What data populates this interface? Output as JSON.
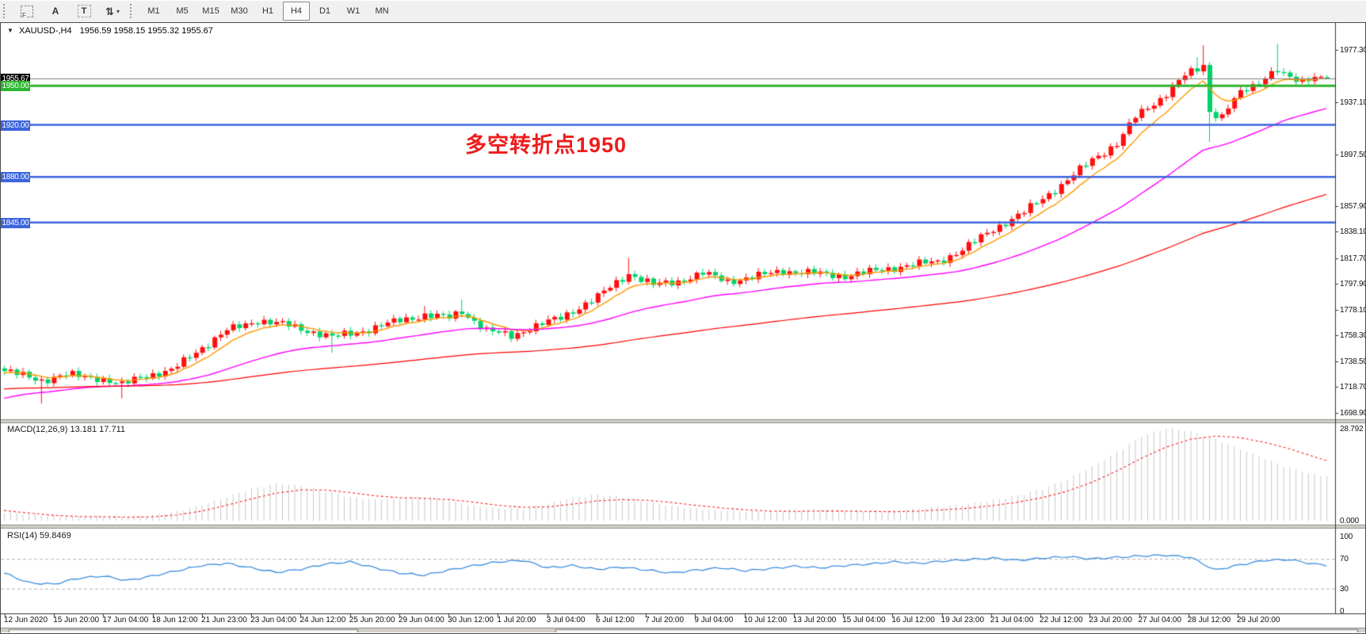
{
  "toolbar": {
    "tools": {
      "f": "F",
      "font": "A",
      "text": "T",
      "arrows": "⇅",
      "caret": "▾"
    },
    "timeframes": [
      "M1",
      "M5",
      "M15",
      "M30",
      "H1",
      "H4",
      "D1",
      "W1",
      "MN"
    ],
    "selected_timeframe": "H4"
  },
  "chart": {
    "title_symbol": "XAUUSD-,H4",
    "title_ohlc": "1956.59 1958.15 1955.32 1955.67",
    "annotation": {
      "text": "多空转折点1950",
      "color": "#ee1c1c"
    },
    "current_price": "1955.67",
    "sr_levels": [
      {
        "price": "1950.00",
        "value": 1950,
        "color": "#2eb52e"
      },
      {
        "price": "1920.00",
        "value": 1920,
        "color": "#3c64dc"
      },
      {
        "price": "1880.00",
        "value": 1880,
        "color": "#3c64dc"
      },
      {
        "price": "1845.00",
        "value": 1845,
        "color": "#3c64dc"
      }
    ],
    "y_ticks": [
      "1977.30",
      "1937.10",
      "1897.50",
      "1857.90",
      "1838.10",
      "1817.70",
      "1797.90",
      "1778.10",
      "1758.30",
      "1738.50",
      "1718.70",
      "1698.90"
    ],
    "x_ticks": [
      "12 Jun 2020",
      "15 Jun 20:00",
      "17 Jun 04:00",
      "18 Jun 12:00",
      "21 Jun 23:00",
      "23 Jun 04:00",
      "24 Jun 12:00",
      "25 Jun 20:00",
      "29 Jun 04:00",
      "30 Jun 12:00",
      "1 Jul 20:00",
      "3 Jul 04:00",
      "6 Jul 12:00",
      "7 Jul 20:00",
      "9 Jul 04:00",
      "10 Jul 12:00",
      "13 Jul 20:00",
      "15 Jul 04:00",
      "16 Jul 12:00",
      "19 Jul 23:00",
      "21 Jul 04:00",
      "22 Jul 12:00",
      "23 Jul 20:00",
      "27 Jul 04:00",
      "28 Jul 12:00",
      "29 Jul 20:00"
    ],
    "colors": {
      "up": "#ff0f0f",
      "down": "#00d26a",
      "ma_fast": "#ff9900",
      "ma_mid": "#ff00ff",
      "ma_slow": "#ff0000",
      "macd_hist": "#c9c9c9",
      "macd_signal": "#ff2222",
      "rsi": "#3f8fde",
      "price_line": "#7d7d7d",
      "current_box": "#000000"
    }
  },
  "macd_panel": {
    "label": "MACD(12,26,9)",
    "values": "13.181 17.711",
    "axis": [
      {
        "label": "28.792",
        "value": 28.792
      },
      {
        "label": "0.000",
        "value": 0
      }
    ]
  },
  "rsi_panel": {
    "label": "RSI(14)",
    "value": "59.8469",
    "axis": [
      {
        "label": "100",
        "value": 100
      },
      {
        "label": "70",
        "value": 70
      },
      {
        "label": "30",
        "value": 30
      },
      {
        "label": "0",
        "value": 0
      }
    ],
    "dashed_levels": [
      70,
      30
    ]
  },
  "chart_data": {
    "type": "candlestick",
    "symbol": "XAUUSD-",
    "timeframe": "H4",
    "title": "XAUUSD-,H4 1956.59 1958.15 1955.32 1955.67",
    "last_ohlc": {
      "open": 1956.59,
      "high": 1958.15,
      "low": 1955.32,
      "close": 1955.67
    },
    "ylim": [
      1694,
      1997
    ],
    "num_candles": 215,
    "candle_color_convention": "red = up, green = down (CN style)",
    "support_resistance": [
      1950,
      1920,
      1880,
      1845
    ],
    "annotation_text": "多空转折点1950",
    "close_anchors": [
      [
        0,
        1731
      ],
      [
        6,
        1724
      ],
      [
        10,
        1728
      ],
      [
        15,
        1726
      ],
      [
        19,
        1720
      ],
      [
        22,
        1727
      ],
      [
        27,
        1731
      ],
      [
        31,
        1746
      ],
      [
        36,
        1762
      ],
      [
        41,
        1770
      ],
      [
        46,
        1766
      ],
      [
        53,
        1757
      ],
      [
        59,
        1763
      ],
      [
        64,
        1770
      ],
      [
        68,
        1774
      ],
      [
        72,
        1772
      ],
      [
        74,
        1777
      ],
      [
        78,
        1762
      ],
      [
        82,
        1758
      ],
      [
        85,
        1764
      ],
      [
        90,
        1772
      ],
      [
        96,
        1788
      ],
      [
        101,
        1806
      ],
      [
        105,
        1797
      ],
      [
        109,
        1800
      ],
      [
        113,
        1806
      ],
      [
        117,
        1800
      ],
      [
        121,
        1803
      ],
      [
        126,
        1808
      ],
      [
        131,
        1806
      ],
      [
        136,
        1804
      ],
      [
        141,
        1808
      ],
      [
        146,
        1812
      ],
      [
        151,
        1815
      ],
      [
        155,
        1824
      ],
      [
        160,
        1840
      ],
      [
        165,
        1853
      ],
      [
        171,
        1874
      ],
      [
        176,
        1893
      ],
      [
        180,
        1906
      ],
      [
        183,
        1926
      ],
      [
        187,
        1940
      ],
      [
        191,
        1958
      ],
      [
        193,
        1962
      ],
      [
        194,
        1966
      ],
      [
        195,
        1930
      ],
      [
        197,
        1927
      ],
      [
        199,
        1940
      ],
      [
        201,
        1947
      ],
      [
        203,
        1952
      ],
      [
        204,
        1958
      ],
      [
        206,
        1963
      ],
      [
        208,
        1955
      ],
      [
        210,
        1952
      ],
      [
        212,
        1958
      ],
      [
        214,
        1955.67
      ]
    ],
    "wick_events": [
      {
        "i": 6,
        "low": 1706
      },
      {
        "i": 19,
        "low": 1710
      },
      {
        "i": 53,
        "low": 1745
      },
      {
        "i": 68,
        "high": 1781
      },
      {
        "i": 74,
        "high": 1786
      },
      {
        "i": 101,
        "high": 1818
      },
      {
        "i": 193,
        "high": 1972
      },
      {
        "i": 194,
        "high": 1981
      },
      {
        "i": 195,
        "low": 1907
      },
      {
        "i": 206,
        "high": 1982
      }
    ],
    "macd": {
      "params": "12,26,9",
      "current_hist": 13.181,
      "current_signal": 17.711,
      "ylim": [
        0,
        28.792
      ],
      "hist_samples": [
        2.3,
        1.6,
        1.1,
        0.9,
        1.3,
        1.0,
        1.4,
        2.6,
        4.5,
        7.0,
        9.5,
        11.2,
        10.5,
        9.0,
        7.0,
        6.2,
        6.8,
        7.2,
        6.0,
        4.2,
        3.4,
        3.6,
        5.0,
        6.8,
        7.8,
        7.0,
        5.5,
        4.2,
        3.4,
        2.8,
        2.4,
        2.6,
        3.0,
        3.2,
        3.0,
        2.7,
        2.9,
        3.4,
        4.0,
        4.8,
        6.0,
        7.5,
        9.5,
        12.5,
        16.5,
        21.0,
        26.0,
        28.5,
        27.5,
        25.0,
        22.0,
        19.0,
        16.0,
        14.0,
        13.2
      ],
      "signal_samples": [
        3.2,
        2.4,
        1.7,
        1.3,
        1.2,
        1.1,
        1.2,
        1.8,
        3.0,
        4.8,
        6.8,
        8.6,
        9.6,
        9.6,
        8.8,
        7.8,
        7.2,
        7.0,
        6.6,
        5.8,
        4.8,
        4.2,
        4.3,
        5.2,
        6.2,
        6.6,
        6.4,
        5.7,
        4.8,
        4.0,
        3.4,
        3.0,
        2.9,
        3.0,
        3.0,
        2.9,
        2.8,
        3.0,
        3.4,
        3.9,
        4.7,
        5.8,
        7.2,
        9.2,
        12.0,
        15.5,
        19.5,
        23.0,
        25.5,
        26.5,
        26.0,
        24.5,
        22.5,
        20.0,
        17.7
      ]
    },
    "rsi": {
      "period": 14,
      "current": 59.8469,
      "levels": [
        100,
        70,
        30,
        0
      ],
      "samples": [
        51,
        38,
        36,
        44,
        47,
        41,
        47,
        54,
        61,
        64,
        58,
        52,
        56,
        63,
        66,
        58,
        51,
        48,
        55,
        61,
        66,
        68,
        58,
        61,
        56,
        59,
        55,
        51,
        55,
        58,
        54,
        57,
        60,
        58,
        61,
        63,
        66,
        64,
        67,
        69,
        71,
        68,
        71,
        73,
        70,
        72,
        74,
        75,
        72,
        55,
        62,
        68,
        69,
        63,
        60
      ]
    }
  }
}
